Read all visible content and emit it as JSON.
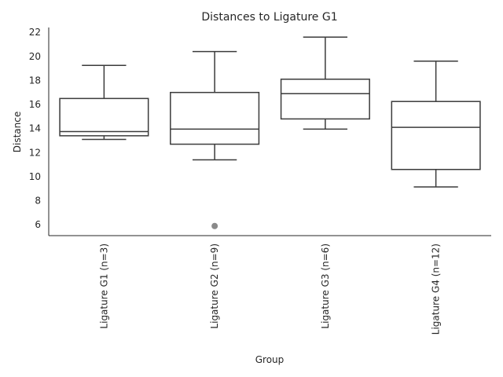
{
  "chart_data": {
    "type": "box",
    "title": "Distances to Ligature G1",
    "xlabel": "Group",
    "ylabel": "Distance",
    "ylim": [
      5.1,
      22.4
    ],
    "yticks": [
      6,
      8,
      10,
      12,
      14,
      16,
      18,
      20,
      22
    ],
    "grid": false,
    "categories": [
      "Ligature G1 (n=3)",
      "Ligature G2 (n=9)",
      "Ligature G3 (n=6)",
      "Ligature G4 (n=12)"
    ],
    "boxes": [
      {
        "whisker_low": 13.1,
        "q1": 13.4,
        "median": 13.75,
        "q3": 16.5,
        "whisker_high": 19.25,
        "outliers": []
      },
      {
        "whisker_low": 11.4,
        "q1": 12.7,
        "median": 13.95,
        "q3": 17.0,
        "whisker_high": 20.4,
        "outliers": [
          5.9
        ]
      },
      {
        "whisker_low": 13.95,
        "q1": 14.8,
        "median": 16.9,
        "q3": 18.1,
        "whisker_high": 21.6,
        "outliers": []
      },
      {
        "whisker_low": 9.15,
        "q1": 10.6,
        "median": 14.1,
        "q3": 16.25,
        "whisker_high": 19.6,
        "outliers": []
      }
    ],
    "colors": {
      "box_edge": "#3b3b3b",
      "outlier": "#8a8a8a",
      "axis": "#262626"
    }
  }
}
